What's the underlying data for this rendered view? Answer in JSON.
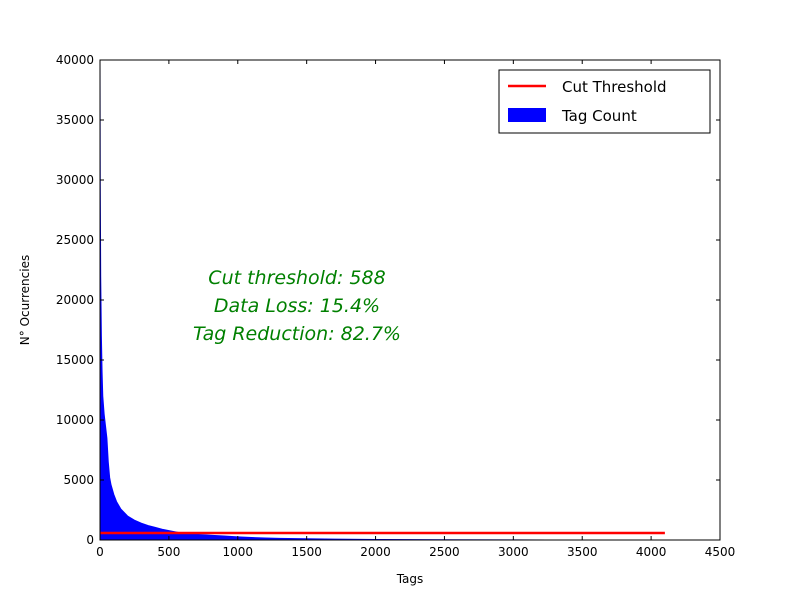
{
  "chart_data": {
    "type": "bar",
    "title": "",
    "xlabel": "Tags",
    "ylabel": "N° Ocurrencies",
    "xlim": [
      0,
      4500
    ],
    "ylim": [
      0,
      40000
    ],
    "xticks": [
      0,
      500,
      1000,
      1500,
      2000,
      2500,
      3000,
      3500,
      4000,
      4500
    ],
    "yticks": [
      0,
      5000,
      10000,
      15000,
      20000,
      25000,
      30000,
      35000,
      40000
    ],
    "grid": false,
    "legend_position": "top-right",
    "legend": [
      {
        "label": "Cut Threshold",
        "kind": "line",
        "color": "#ff0000"
      },
      {
        "label": "Tag Count",
        "kind": "patch",
        "color": "#0000ff"
      }
    ],
    "series": [
      {
        "name": "Tag Count",
        "color": "#0000ff",
        "profile_x": [
          0,
          2,
          5,
          10,
          15,
          20,
          30,
          40,
          50,
          60,
          70,
          80,
          100,
          120,
          150,
          200,
          250,
          300,
          350,
          400,
          450,
          500,
          588,
          700,
          800,
          900,
          1000,
          1100,
          1200,
          1300,
          1500,
          1700,
          2000,
          2500,
          3000,
          3250
        ],
        "profile_y": [
          40000,
          29500,
          22000,
          17000,
          14000,
          12000,
          10500,
          9500,
          8500,
          6500,
          5200,
          4600,
          3800,
          3200,
          2600,
          2000,
          1650,
          1400,
          1200,
          1050,
          900,
          780,
          588,
          470,
          400,
          330,
          260,
          210,
          170,
          140,
          100,
          70,
          45,
          20,
          8,
          0
        ]
      },
      {
        "name": "Cut Threshold",
        "color": "#ff0000",
        "x": [
          0,
          4100
        ],
        "y": [
          588,
          588
        ]
      }
    ],
    "annotations": [
      {
        "text": "Cut threshold: 588",
        "color": "#008000"
      },
      {
        "text": "Data Loss: 15.4%",
        "color": "#008000"
      },
      {
        "text": "Tag Reduction: 82.7%",
        "color": "#008000"
      }
    ]
  }
}
